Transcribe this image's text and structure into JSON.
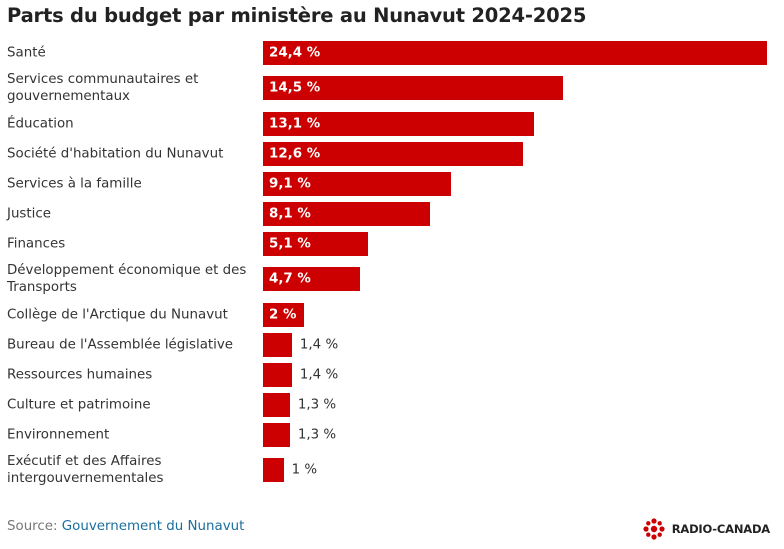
{
  "title": "Parts du budget par ministère au Nunavut 2024-2025",
  "source": {
    "prefix": "Source: ",
    "name": "Gouvernement du Nunavut"
  },
  "brand": {
    "name": "RADIO-CANADA",
    "logo_icon": "radio-canada-gem-icon",
    "color": "#cc0000"
  },
  "colors": {
    "bar": "#cc0000",
    "inside_label": "#ffffff",
    "outside_label": "#333333"
  },
  "chart_data": {
    "type": "bar",
    "orientation": "horizontal",
    "title": "Parts du budget par ministère au Nunavut 2024-2025",
    "categories": [
      "Santé",
      "Services communautaires et gouvernementaux",
      "Éducation",
      "Société d'habitation du Nunavut",
      "Services à la famille",
      "Justice",
      "Finances",
      "Développement économique et des Transports",
      "Collège de l'Arctique du Nunavut",
      "Bureau de l'Assemblée législative",
      "Ressources humaines",
      "Culture et patrimoine",
      "Environnement",
      "Exécutif et des Affaires intergouvernementales"
    ],
    "values": [
      24.4,
      14.5,
      13.1,
      12.6,
      9.1,
      8.1,
      5.1,
      4.7,
      2,
      1.4,
      1.4,
      1.3,
      1.3,
      1
    ],
    "value_labels": [
      "24,4 %",
      "14,5 %",
      "13,1 %",
      "12,6 %",
      "9,1 %",
      "8,1 %",
      "5,1 %",
      "4,7 %",
      "2 %",
      "1,4 %",
      "1,4 %",
      "1,3 %",
      "1,3 %",
      "1 %"
    ],
    "unit": "%",
    "xlim": [
      0,
      24.4
    ],
    "grid": false,
    "legend": "none"
  }
}
